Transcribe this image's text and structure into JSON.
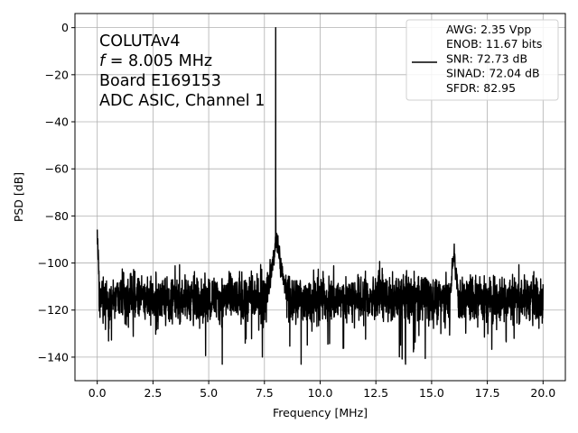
{
  "chart_data": {
    "type": "line",
    "xlabel": "Frequency [MHz]",
    "ylabel": "PSD [dB]",
    "xlim": [
      -1.0,
      21.0
    ],
    "ylim": [
      -150,
      6
    ],
    "xticks": [
      0.0,
      2.5,
      5.0,
      7.5,
      10.0,
      12.5,
      15.0,
      17.5,
      20.0
    ],
    "xtick_labels": [
      "0.0",
      "2.5",
      "5.0",
      "7.5",
      "10.0",
      "12.5",
      "15.0",
      "17.5",
      "20.0"
    ],
    "yticks": [
      0,
      -20,
      -40,
      -60,
      -80,
      -100,
      -120,
      -140
    ],
    "ytick_labels": [
      "0",
      "−20",
      "−40",
      "−60",
      "−80",
      "−100",
      "−120",
      "−140"
    ],
    "grid": true,
    "legend_position": "top-right",
    "annotation_lines": [
      {
        "italic_prefix": "",
        "text": "COLUTAv4"
      },
      {
        "italic_prefix": "f",
        "text": " = 8.005 MHz"
      },
      {
        "italic_prefix": "",
        "text": "Board E169153"
      },
      {
        "italic_prefix": "",
        "text": "ADC ASIC, Channel  1"
      }
    ],
    "series": [
      {
        "legend_lines": [
          "AWG: 2.35 Vpp",
          "ENOB: 11.67 bits",
          "SNR: 72.73 dB",
          "SINAD: 72.04 dB",
          "SFDR: 82.95"
        ],
        "color": "#000000",
        "noise_floor_db": -115,
        "noise_range_db": [
          -143,
          -103
        ],
        "peaks": [
          {
            "x": 0.0,
            "y": -88
          },
          {
            "x": 8.005,
            "y": 0
          },
          {
            "x": 8.1,
            "y": -89
          },
          {
            "x": 16.01,
            "y": -96
          }
        ],
        "x_range": [
          0.0,
          20.0
        ]
      }
    ]
  }
}
